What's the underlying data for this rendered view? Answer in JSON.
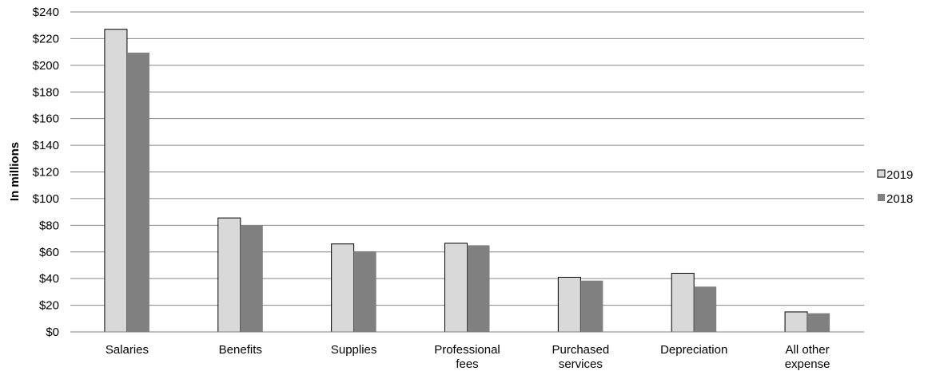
{
  "chart_data": {
    "type": "bar",
    "ylabel": "In millions",
    "ylim": [
      0,
      240
    ],
    "y_ticks": [
      "$0",
      "$20",
      "$40",
      "$60",
      "$80",
      "$100",
      "$120",
      "$140",
      "$160",
      "$180",
      "$200",
      "$220",
      "$240"
    ],
    "grid": true,
    "legend_position": "right",
    "categories": [
      [
        "Salaries"
      ],
      [
        "Benefits"
      ],
      [
        "Supplies"
      ],
      [
        "Professional",
        "fees"
      ],
      [
        "Purchased",
        "services"
      ],
      [
        "Depreciation"
      ],
      [
        "All other",
        "expense"
      ]
    ],
    "series": [
      {
        "name": "2019",
        "color": "#d9d9d9",
        "values": [
          227,
          85.5,
          66,
          66.5,
          41,
          44,
          15
        ]
      },
      {
        "name": "2018",
        "color": "#808080",
        "values": [
          209.5,
          80,
          60.5,
          65,
          38.5,
          34,
          14
        ]
      }
    ]
  }
}
